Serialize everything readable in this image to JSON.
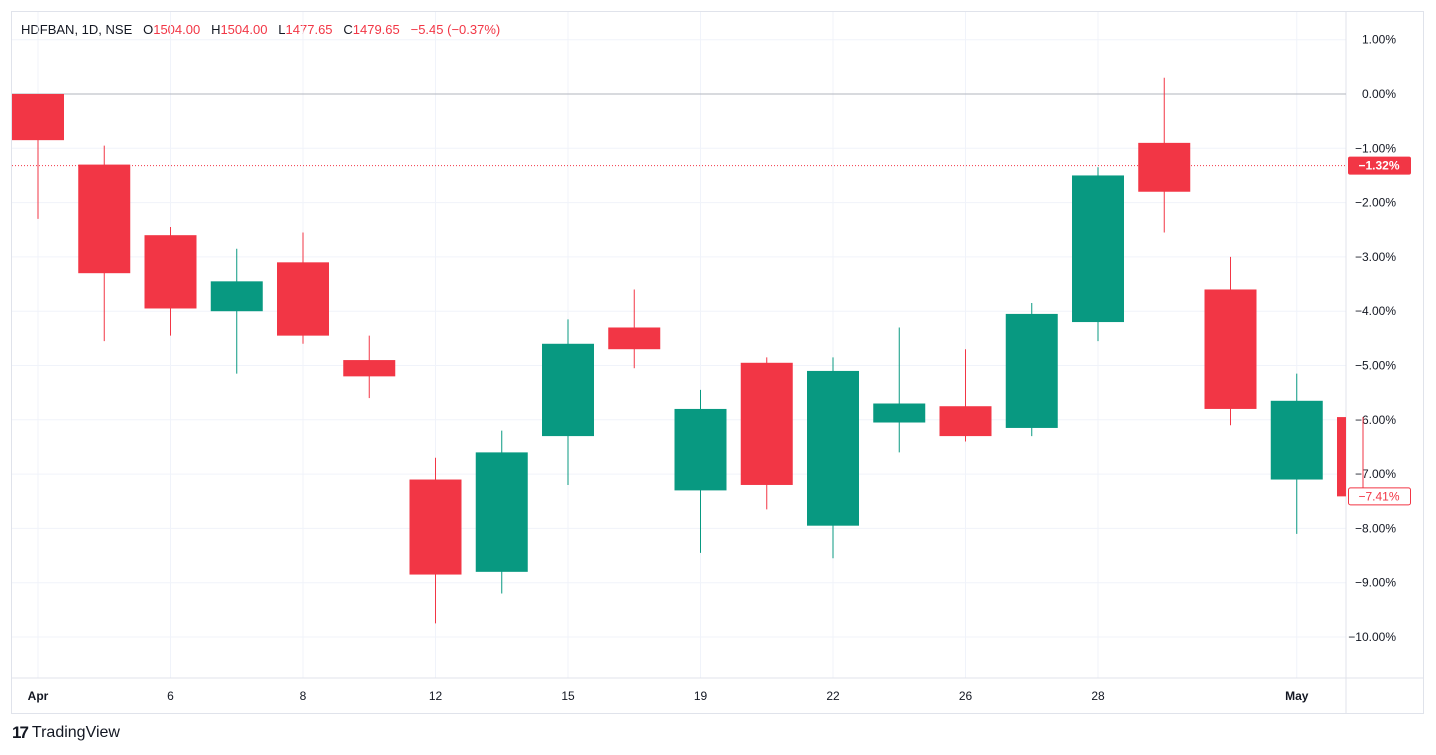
{
  "header": {
    "symbol": "HDFBAN, 1D, NSE",
    "o_label": "O",
    "o_value": "1504.00",
    "h_label": "H",
    "h_value": "1504.00",
    "l_label": "L",
    "l_value": "1477.65",
    "c_label": "C",
    "c_value": "1479.65",
    "change": "−5.45 (−0.37%)"
  },
  "branding": {
    "logo_mark": "17",
    "name": "TradingView"
  },
  "colors": {
    "up": "#089981",
    "down": "#f23645",
    "grid": "#f0f3fa",
    "axis_text": "#131722",
    "zero_line": "#b2b5be"
  },
  "chart_data": {
    "type": "candlestick",
    "y_unit": "%",
    "ylim": [
      -10.8,
      1.3
    ],
    "y_ticks": [
      "1.00%",
      "0.00%",
      "−1.00%",
      "−2.00%",
      "−3.00%",
      "−4.00%",
      "−5.00%",
      "−6.00%",
      "−7.00%",
      "−8.00%",
      "−9.00%",
      "−10.00%"
    ],
    "y_tick_values": [
      1,
      0,
      -1,
      -2,
      -3,
      -4,
      -5,
      -6,
      -7,
      -8,
      -9,
      -10
    ],
    "x_ticks": [
      {
        "label": "Apr",
        "index": 0,
        "bold": true
      },
      {
        "label": "6",
        "index": 2
      },
      {
        "label": "8",
        "index": 4
      },
      {
        "label": "12",
        "index": 6
      },
      {
        "label": "15",
        "index": 8
      },
      {
        "label": "19",
        "index": 10
      },
      {
        "label": "22",
        "index": 12
      },
      {
        "label": "26",
        "index": 14
      },
      {
        "label": "28",
        "index": 16
      },
      {
        "label": "May",
        "index": 19,
        "bold": true
      }
    ],
    "candles": [
      {
        "o": 0.0,
        "h": 0.0,
        "l": -2.3,
        "c": -0.85
      },
      {
        "o": -1.3,
        "h": -0.95,
        "l": -4.55,
        "c": -3.3
      },
      {
        "o": -2.6,
        "h": -2.45,
        "l": -4.45,
        "c": -3.95
      },
      {
        "o": -4.0,
        "h": -2.85,
        "l": -5.15,
        "c": -3.45
      },
      {
        "o": -3.1,
        "h": -2.55,
        "l": -4.6,
        "c": -4.45
      },
      {
        "o": -4.9,
        "h": -4.45,
        "l": -5.6,
        "c": -5.2
      },
      {
        "o": -7.1,
        "h": -6.7,
        "l": -9.75,
        "c": -8.85
      },
      {
        "o": -8.8,
        "h": -6.2,
        "l": -9.2,
        "c": -6.6
      },
      {
        "o": -6.3,
        "h": -4.15,
        "l": -7.2,
        "c": -4.6
      },
      {
        "o": -4.3,
        "h": -3.6,
        "l": -5.05,
        "c": -4.7
      },
      {
        "o": -7.3,
        "h": -5.45,
        "l": -8.45,
        "c": -5.8
      },
      {
        "o": -4.95,
        "h": -4.85,
        "l": -7.65,
        "c": -7.2
      },
      {
        "o": -7.95,
        "h": -4.85,
        "l": -8.55,
        "c": -5.1
      },
      {
        "o": -6.05,
        "h": -4.3,
        "l": -6.6,
        "c": -5.7
      },
      {
        "o": -5.75,
        "h": -4.7,
        "l": -6.4,
        "c": -6.3
      },
      {
        "o": -6.15,
        "h": -3.85,
        "l": -6.3,
        "c": -4.05
      },
      {
        "o": -4.2,
        "h": -1.35,
        "l": -4.55,
        "c": -1.5
      },
      {
        "o": -0.9,
        "h": 0.3,
        "l": -2.55,
        "c": -1.8
      },
      {
        "o": -3.6,
        "h": -3.0,
        "l": -6.1,
        "c": -5.8
      },
      {
        "o": -7.1,
        "h": -5.15,
        "l": -8.1,
        "c": -5.65
      },
      {
        "o": -5.95,
        "h": -5.95,
        "l": -7.41,
        "c": -7.41
      }
    ],
    "reference_line": 0.0,
    "price_line": {
      "value": -1.32,
      "label": "−1.32%"
    },
    "last_value": {
      "value": -7.41,
      "label": "−7.41%"
    }
  }
}
